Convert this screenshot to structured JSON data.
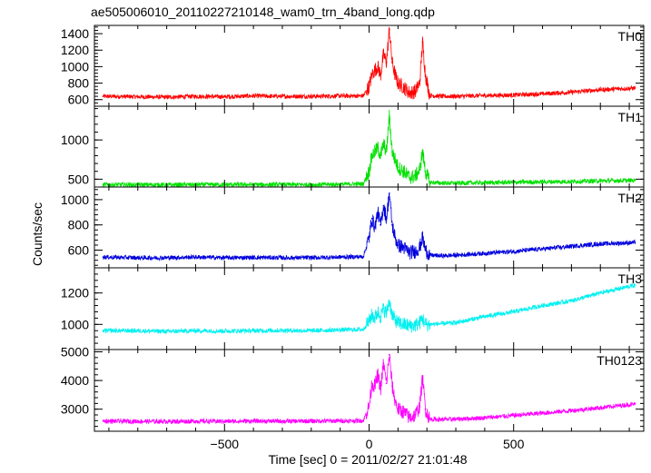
{
  "chart_data": {
    "type": "line",
    "title": "ae505006010_20110227210148_wam0_trn_4band_long.qdp",
    "xlabel": "Time [sec] 0 = 2011/02/27 21:01:48",
    "ylabel": "Counts/sec",
    "xlim": [
      -950,
      950
    ],
    "x_ticks": [
      -500,
      0,
      500
    ],
    "x_tick_labels": [
      "−500",
      "0",
      "500"
    ],
    "legend": "none",
    "grid": false,
    "panels": [
      {
        "name": "TH0",
        "color": "#ff0000",
        "ylim": [
          520,
          1500
        ],
        "y_ticks": [
          600,
          800,
          1000,
          1200,
          1400
        ],
        "y_tick_labels": [
          "600",
          "800",
          "1000",
          "1200",
          "1400"
        ],
        "x": [
          -920,
          -800,
          -700,
          -600,
          -500,
          -400,
          -300,
          -200,
          -100,
          -20,
          0,
          10,
          20,
          30,
          40,
          50,
          60,
          70,
          80,
          90,
          100,
          120,
          140,
          160,
          175,
          185,
          195,
          210,
          250,
          300,
          400,
          500,
          600,
          700,
          800,
          920
        ],
        "values": [
          640,
          635,
          630,
          640,
          635,
          645,
          640,
          640,
          645,
          645,
          760,
          900,
          960,
          1000,
          900,
          1150,
          1050,
          1450,
          1050,
          900,
          800,
          750,
          680,
          700,
          800,
          1300,
          900,
          650,
          640,
          640,
          650,
          655,
          670,
          690,
          720,
          740
        ]
      },
      {
        "name": "TH1",
        "color": "#00e000",
        "ylim": [
          400,
          1430
        ],
        "y_ticks": [
          500,
          1000
        ],
        "y_tick_labels": [
          "500",
          "1000"
        ],
        "x": [
          -920,
          -800,
          -700,
          -600,
          -500,
          -400,
          -300,
          -200,
          -100,
          -20,
          0,
          10,
          20,
          30,
          40,
          50,
          60,
          70,
          80,
          90,
          100,
          120,
          140,
          160,
          175,
          185,
          195,
          210,
          250,
          300,
          400,
          500,
          600,
          700,
          800,
          920
        ],
        "values": [
          430,
          430,
          428,
          430,
          432,
          430,
          432,
          430,
          435,
          440,
          600,
          800,
          850,
          900,
          800,
          950,
          850,
          1300,
          850,
          750,
          650,
          600,
          520,
          540,
          620,
          850,
          600,
          460,
          450,
          450,
          455,
          460,
          465,
          470,
          478,
          485
        ]
      },
      {
        "name": "TH2",
        "color": "#0000dd",
        "ylim": [
          460,
          1100
        ],
        "y_ticks": [
          600,
          800,
          1000
        ],
        "y_tick_labels": [
          "600",
          "800",
          "1000"
        ],
        "x": [
          -920,
          -800,
          -700,
          -600,
          -500,
          -400,
          -300,
          -200,
          -100,
          -20,
          0,
          10,
          20,
          30,
          40,
          50,
          60,
          70,
          80,
          90,
          100,
          120,
          140,
          160,
          175,
          185,
          195,
          210,
          250,
          300,
          400,
          500,
          600,
          700,
          800,
          920
        ],
        "values": [
          545,
          540,
          540,
          545,
          540,
          542,
          540,
          540,
          545,
          548,
          700,
          850,
          780,
          900,
          800,
          950,
          850,
          1050,
          800,
          700,
          640,
          620,
          580,
          590,
          620,
          700,
          600,
          560,
          555,
          560,
          575,
          590,
          610,
          630,
          650,
          660
        ]
      },
      {
        "name": "TH3",
        "color": "#00f0f0",
        "ylim": [
          840,
          1360
        ],
        "y_ticks": [
          1000,
          1200
        ],
        "y_tick_labels": [
          "1000",
          "1200"
        ],
        "x": [
          -920,
          -800,
          -700,
          -600,
          -500,
          -400,
          -300,
          -200,
          -100,
          -20,
          0,
          10,
          20,
          30,
          40,
          50,
          60,
          70,
          80,
          90,
          100,
          120,
          140,
          160,
          175,
          185,
          195,
          210,
          250,
          300,
          400,
          500,
          600,
          700,
          800,
          920
        ],
        "values": [
          960,
          960,
          955,
          960,
          958,
          960,
          962,
          960,
          965,
          968,
          1020,
          1060,
          1040,
          1080,
          1050,
          1100,
          1070,
          1150,
          1060,
          1030,
          1010,
          1000,
          990,
          995,
          1010,
          1040,
          1000,
          1000,
          1005,
          1010,
          1050,
          1080,
          1120,
          1150,
          1200,
          1250
        ]
      },
      {
        "name": "TH0123",
        "color": "#ff00ff",
        "ylim": [
          2230,
          5080
        ],
        "y_ticks": [
          3000,
          4000,
          5000
        ],
        "y_tick_labels": [
          "3000",
          "4000",
          "5000"
        ],
        "x": [
          -920,
          -800,
          -700,
          -600,
          -500,
          -400,
          -300,
          -200,
          -100,
          -20,
          0,
          10,
          20,
          30,
          40,
          50,
          60,
          70,
          80,
          90,
          100,
          120,
          140,
          160,
          175,
          185,
          195,
          210,
          250,
          300,
          400,
          500,
          600,
          700,
          800,
          920
        ],
        "values": [
          2580,
          2575,
          2570,
          2580,
          2575,
          2585,
          2580,
          2585,
          2590,
          2600,
          3100,
          3900,
          3800,
          4200,
          3700,
          4600,
          3900,
          4900,
          3800,
          3300,
          3000,
          2900,
          2700,
          2800,
          3100,
          4100,
          3000,
          2650,
          2640,
          2650,
          2700,
          2780,
          2860,
          2950,
          3050,
          3180
        ]
      }
    ]
  }
}
